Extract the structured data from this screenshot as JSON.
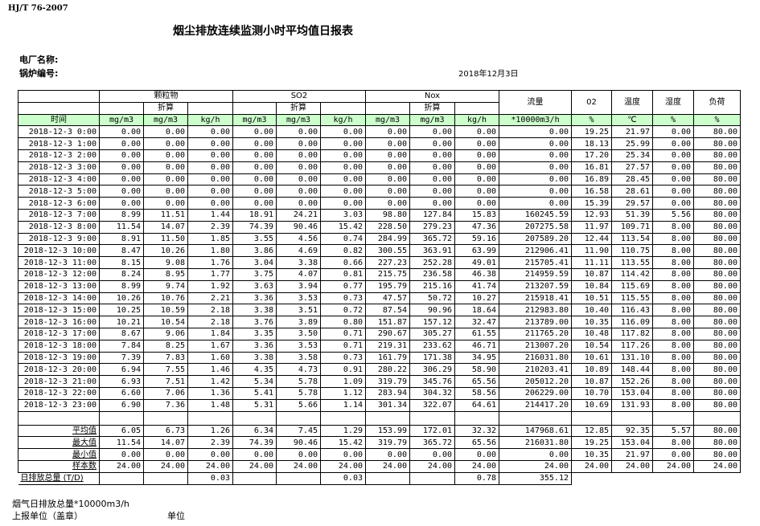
{
  "standard": "HJ/T  76-2007",
  "title": "烟尘排放连续监测小时平均值日报表",
  "plant_label": "电厂名称:",
  "boiler_label": "锅炉编号:",
  "date": "2018年12月3日",
  "header": {
    "groups": [
      "颗粒物",
      "SO2",
      "Nox"
    ],
    "converted": "折算",
    "flow": "流量",
    "o2": "02",
    "temp": "温度",
    "humidity": "湿度",
    "load": "负荷",
    "units": [
      "时间",
      "mg/m3",
      "mg/m3",
      "kg/h",
      "mg/m3",
      "mg/m3",
      "kg/h",
      "mg/m3",
      "mg/m3",
      "kg/h",
      "*10000m3/h",
      "%",
      "℃",
      "%",
      "%"
    ]
  },
  "rows": [
    {
      "time": "2018-12-3 0:00",
      "values": [
        "0.00",
        "0.00",
        "0.00",
        "0.00",
        "0.00",
        "0.00",
        "0.00",
        "0.00",
        "0.00",
        "0.00",
        "19.25",
        "21.97",
        "0.00",
        "80.00"
      ]
    },
    {
      "time": "2018-12-3 1:00",
      "values": [
        "0.00",
        "0.00",
        "0.00",
        "0.00",
        "0.00",
        "0.00",
        "0.00",
        "0.00",
        "0.00",
        "0.00",
        "18.13",
        "25.99",
        "0.00",
        "80.00"
      ]
    },
    {
      "time": "2018-12-3 2:00",
      "values": [
        "0.00",
        "0.00",
        "0.00",
        "0.00",
        "0.00",
        "0.00",
        "0.00",
        "0.00",
        "0.00",
        "0.00",
        "17.20",
        "25.34",
        "0.00",
        "80.00"
      ]
    },
    {
      "time": "2018-12-3 3:00",
      "values": [
        "0.00",
        "0.00",
        "0.00",
        "0.00",
        "0.00",
        "0.00",
        "0.00",
        "0.00",
        "0.00",
        "0.00",
        "16.81",
        "27.57",
        "0.00",
        "80.00"
      ]
    },
    {
      "time": "2018-12-3 4:00",
      "values": [
        "0.00",
        "0.00",
        "0.00",
        "0.00",
        "0.00",
        "0.00",
        "0.00",
        "0.00",
        "0.00",
        "0.00",
        "16.89",
        "28.45",
        "0.00",
        "80.00"
      ]
    },
    {
      "time": "2018-12-3 5:00",
      "values": [
        "0.00",
        "0.00",
        "0.00",
        "0.00",
        "0.00",
        "0.00",
        "0.00",
        "0.00",
        "0.00",
        "0.00",
        "16.58",
        "28.61",
        "0.00",
        "80.00"
      ]
    },
    {
      "time": "2018-12-3 6:00",
      "values": [
        "0.00",
        "0.00",
        "0.00",
        "0.00",
        "0.00",
        "0.00",
        "0.00",
        "0.00",
        "0.00",
        "0.00",
        "15.39",
        "29.57",
        "0.00",
        "80.00"
      ]
    },
    {
      "time": "2018-12-3 7:00",
      "values": [
        "8.99",
        "11.51",
        "1.44",
        "18.91",
        "24.21",
        "3.03",
        "98.80",
        "127.84",
        "15.83",
        "160245.59",
        "12.93",
        "51.39",
        "5.56",
        "80.00"
      ]
    },
    {
      "time": "2018-12-3 8:00",
      "values": [
        "11.54",
        "14.07",
        "2.39",
        "74.39",
        "90.46",
        "15.42",
        "228.50",
        "279.23",
        "47.36",
        "207275.58",
        "11.97",
        "109.71",
        "8.00",
        "80.00"
      ]
    },
    {
      "time": "2018-12-3 9:00",
      "values": [
        "8.91",
        "11.50",
        "1.85",
        "3.55",
        "4.56",
        "0.74",
        "284.99",
        "365.72",
        "59.16",
        "207589.20",
        "12.44",
        "113.54",
        "8.00",
        "80.00"
      ]
    },
    {
      "time": "2018-12-3 10:00",
      "values": [
        "8.47",
        "10.26",
        "1.80",
        "3.86",
        "4.69",
        "0.82",
        "300.55",
        "363.91",
        "63.99",
        "212906.41",
        "11.90",
        "110.75",
        "8.00",
        "80.00"
      ]
    },
    {
      "time": "2018-12-3 11:00",
      "values": [
        "8.15",
        "9.08",
        "1.76",
        "3.04",
        "3.38",
        "0.66",
        "227.23",
        "252.28",
        "49.01",
        "215705.41",
        "11.11",
        "113.55",
        "8.00",
        "80.00"
      ]
    },
    {
      "time": "2018-12-3 12:00",
      "values": [
        "8.24",
        "8.95",
        "1.77",
        "3.75",
        "4.07",
        "0.81",
        "215.75",
        "236.58",
        "46.38",
        "214959.59",
        "10.87",
        "114.42",
        "8.00",
        "80.00"
      ]
    },
    {
      "time": "2018-12-3 13:00",
      "values": [
        "8.99",
        "9.74",
        "1.92",
        "3.63",
        "3.94",
        "0.77",
        "195.79",
        "215.16",
        "41.74",
        "213207.59",
        "10.84",
        "115.69",
        "8.00",
        "80.00"
      ]
    },
    {
      "time": "2018-12-3 14:00",
      "values": [
        "10.26",
        "10.76",
        "2.21",
        "3.36",
        "3.53",
        "0.73",
        "47.57",
        "50.72",
        "10.27",
        "215918.41",
        "10.51",
        "115.55",
        "8.00",
        "80.00"
      ]
    },
    {
      "time": "2018-12-3 15:00",
      "values": [
        "10.25",
        "10.59",
        "2.18",
        "3.38",
        "3.51",
        "0.72",
        "87.54",
        "90.96",
        "18.64",
        "212983.80",
        "10.40",
        "116.43",
        "8.00",
        "80.00"
      ]
    },
    {
      "time": "2018-12-3 16:00",
      "values": [
        "10.21",
        "10.54",
        "2.18",
        "3.76",
        "3.89",
        "0.80",
        "151.87",
        "157.12",
        "32.47",
        "213789.00",
        "10.35",
        "116.09",
        "8.00",
        "80.00"
      ]
    },
    {
      "time": "2018-12-3 17:00",
      "values": [
        "8.67",
        "9.06",
        "1.84",
        "3.35",
        "3.50",
        "0.71",
        "290.67",
        "305.27",
        "61.55",
        "211765.20",
        "10.48",
        "117.82",
        "8.00",
        "80.00"
      ]
    },
    {
      "time": "2018-12-3 18:00",
      "values": [
        "7.84",
        "8.25",
        "1.67",
        "3.36",
        "3.53",
        "0.71",
        "219.31",
        "233.62",
        "46.71",
        "213007.20",
        "10.54",
        "117.26",
        "8.00",
        "80.00"
      ]
    },
    {
      "time": "2018-12-3 19:00",
      "values": [
        "7.39",
        "7.83",
        "1.60",
        "3.38",
        "3.58",
        "0.73",
        "161.79",
        "171.38",
        "34.95",
        "216031.80",
        "10.61",
        "131.10",
        "8.00",
        "80.00"
      ]
    },
    {
      "time": "2018-12-3 20:00",
      "values": [
        "6.94",
        "7.55",
        "1.46",
        "4.35",
        "4.73",
        "0.91",
        "280.22",
        "306.29",
        "58.90",
        "210203.41",
        "10.89",
        "148.44",
        "8.00",
        "80.00"
      ]
    },
    {
      "time": "2018-12-3 21:00",
      "values": [
        "6.93",
        "7.51",
        "1.42",
        "5.34",
        "5.78",
        "1.09",
        "319.79",
        "345.76",
        "65.56",
        "205012.20",
        "10.87",
        "152.26",
        "8.00",
        "80.00"
      ]
    },
    {
      "time": "2018-12-3 22:00",
      "values": [
        "6.60",
        "7.06",
        "1.36",
        "5.41",
        "5.78",
        "1.12",
        "283.94",
        "304.32",
        "58.56",
        "206229.00",
        "10.70",
        "153.04",
        "8.00",
        "80.00"
      ]
    },
    {
      "time": "2018-12-3 23:00",
      "values": [
        "6.90",
        "7.36",
        "1.48",
        "5.31",
        "5.66",
        "1.14",
        "301.34",
        "322.07",
        "64.61",
        "214417.20",
        "10.69",
        "131.93",
        "8.00",
        "80.00"
      ]
    }
  ],
  "stats": [
    {
      "label": "平均值",
      "values": [
        "6.05",
        "6.73",
        "1.26",
        "6.34",
        "7.45",
        "1.29",
        "153.99",
        "172.01",
        "32.32",
        "147968.61",
        "12.85",
        "92.35",
        "5.57",
        "80.00"
      ]
    },
    {
      "label": "最大值",
      "values": [
        "11.54",
        "14.07",
        "2.39",
        "74.39",
        "90.46",
        "15.42",
        "319.79",
        "365.72",
        "65.56",
        "216031.80",
        "19.25",
        "153.04",
        "8.00",
        "80.00"
      ]
    },
    {
      "label": "最小值",
      "values": [
        "0.00",
        "0.00",
        "0.00",
        "0.00",
        "0.00",
        "0.00",
        "0.00",
        "0.00",
        "0.00",
        "0.00",
        "10.35",
        "21.97",
        "0.00",
        "80.00"
      ]
    },
    {
      "label": "样本数",
      "values": [
        "24.00",
        "24.00",
        "24.00",
        "24.00",
        "24.00",
        "24.00",
        "24.00",
        "24.00",
        "24.00",
        "24.00",
        "24.00",
        "24.00",
        "24.00",
        "24.00"
      ]
    }
  ],
  "total": {
    "label": "日排放总量 (T/D)",
    "values": [
      "",
      "",
      "0.03",
      "",
      "",
      "0.03",
      "",
      "",
      "0.78",
      "355.12",
      "",
      "",
      "",
      ""
    ]
  },
  "footer": {
    "flue_total": "烟气日排放总量*10000m3/h",
    "report_unit": "上报单位（盖章）",
    "unit": "单位"
  },
  "colors": {
    "unit_row_bg": "#ccffcc"
  }
}
